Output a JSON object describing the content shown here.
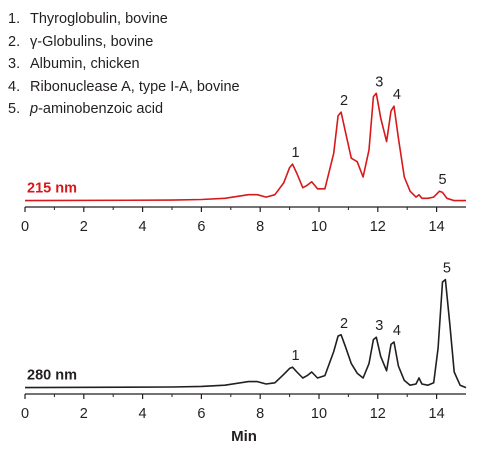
{
  "legend": [
    {
      "num": "1.",
      "prefix": "",
      "italic": "",
      "text": "Thyroglobulin, bovine"
    },
    {
      "num": "2.",
      "prefix": "",
      "italic": "",
      "text": "γ-Globulins, bovine"
    },
    {
      "num": "3.",
      "prefix": "",
      "italic": "",
      "text": "Albumin, chicken"
    },
    {
      "num": "4.",
      "prefix": "",
      "italic": "",
      "text": "Ribonuclease A, type I-A, bovine"
    },
    {
      "num": "5.",
      "prefix": "",
      "italic": "p",
      "text": "-aminobenzoic acid"
    }
  ],
  "chart_data": {
    "type": "line",
    "xlabel": "Min",
    "xlim": [
      0,
      15
    ],
    "xticks": [
      0,
      2,
      4,
      6,
      8,
      10,
      12,
      14
    ],
    "panels": [
      {
        "name": "215 nm",
        "color": "#d7191c",
        "baseline": 0.02,
        "ymax": 1.0,
        "x": [
          0,
          5.0,
          6.0,
          6.8,
          7.6,
          7.9,
          8.2,
          8.5,
          8.8,
          9.0,
          9.1,
          9.25,
          9.45,
          9.6,
          9.75,
          9.95,
          10.2,
          10.5,
          10.65,
          10.75,
          10.9,
          11.1,
          11.3,
          11.5,
          11.7,
          11.85,
          11.95,
          12.1,
          12.3,
          12.45,
          12.55,
          12.7,
          12.9,
          13.1,
          13.3,
          13.4,
          13.5,
          13.7,
          13.9,
          14.1,
          14.2,
          14.35,
          14.6,
          15.0
        ],
        "y": [
          0.02,
          0.025,
          0.03,
          0.04,
          0.07,
          0.07,
          0.05,
          0.07,
          0.17,
          0.3,
          0.33,
          0.25,
          0.13,
          0.15,
          0.18,
          0.12,
          0.12,
          0.42,
          0.74,
          0.77,
          0.6,
          0.38,
          0.35,
          0.22,
          0.45,
          0.9,
          0.93,
          0.72,
          0.52,
          0.78,
          0.82,
          0.55,
          0.22,
          0.1,
          0.05,
          0.07,
          0.04,
          0.04,
          0.05,
          0.1,
          0.09,
          0.04,
          0.02,
          0.02
        ],
        "peaks": [
          {
            "label": "1",
            "x": 9.1,
            "y": 0.33
          },
          {
            "label": "2",
            "x": 10.75,
            "y": 0.77
          },
          {
            "label": "3",
            "x": 11.95,
            "y": 0.93
          },
          {
            "label": "4",
            "x": 12.55,
            "y": 0.82
          },
          {
            "label": "5",
            "x": 14.1,
            "y": 0.1
          }
        ]
      },
      {
        "name": "280 nm",
        "color": "#231f20",
        "baseline": 0.02,
        "ymax": 1.0,
        "x": [
          0,
          5.0,
          6.0,
          6.8,
          7.6,
          7.9,
          8.2,
          8.5,
          8.8,
          9.0,
          9.1,
          9.25,
          9.45,
          9.6,
          9.75,
          9.95,
          10.2,
          10.5,
          10.65,
          10.75,
          10.9,
          11.1,
          11.3,
          11.5,
          11.7,
          11.85,
          11.95,
          12.1,
          12.3,
          12.45,
          12.55,
          12.7,
          12.9,
          13.1,
          13.3,
          13.4,
          13.5,
          13.7,
          13.9,
          14.05,
          14.2,
          14.3,
          14.45,
          14.6,
          14.8,
          15.0
        ],
        "y": [
          0.02,
          0.025,
          0.03,
          0.04,
          0.07,
          0.07,
          0.05,
          0.06,
          0.13,
          0.18,
          0.19,
          0.15,
          0.1,
          0.12,
          0.15,
          0.1,
          0.12,
          0.32,
          0.45,
          0.46,
          0.36,
          0.22,
          0.14,
          0.1,
          0.22,
          0.42,
          0.44,
          0.28,
          0.16,
          0.38,
          0.4,
          0.2,
          0.08,
          0.04,
          0.05,
          0.1,
          0.05,
          0.04,
          0.06,
          0.35,
          0.9,
          0.92,
          0.55,
          0.15,
          0.04,
          0.02
        ],
        "peaks": [
          {
            "label": "1",
            "x": 9.1,
            "y": 0.19
          },
          {
            "label": "2",
            "x": 10.75,
            "y": 0.46
          },
          {
            "label": "3",
            "x": 11.95,
            "y": 0.44
          },
          {
            "label": "4",
            "x": 12.55,
            "y": 0.4
          },
          {
            "label": "5",
            "x": 14.25,
            "y": 0.92
          }
        ]
      }
    ]
  }
}
